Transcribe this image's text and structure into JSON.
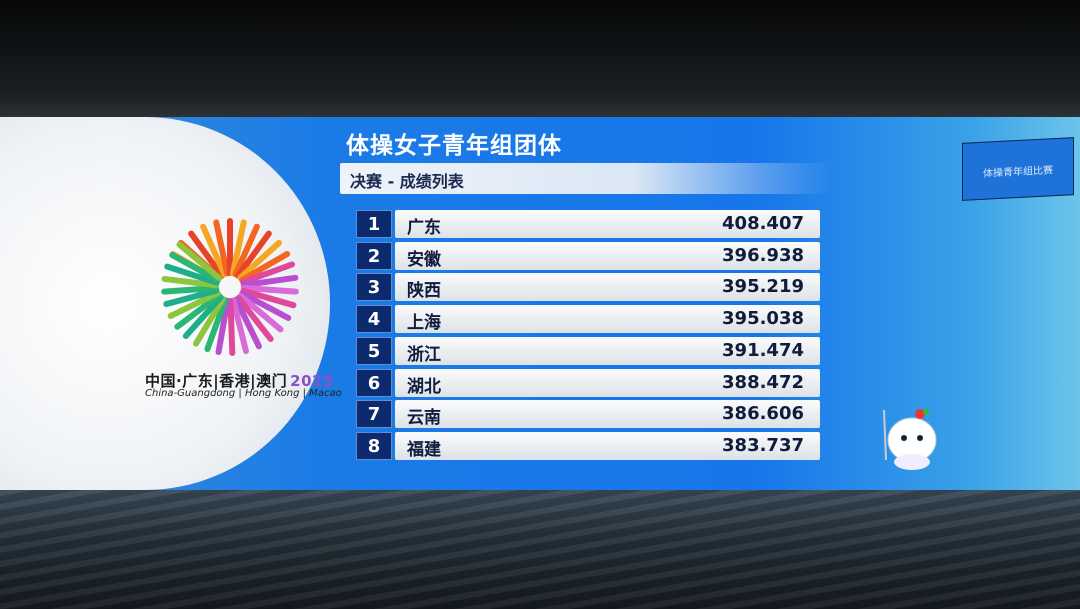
{
  "event_title": "体操女子青年组团体",
  "subtitle": "决赛 - 成绩列表",
  "logo": {
    "text_cn": "中国·广东|香港|澳门",
    "year": "2025",
    "text_en": "China-Guangdong | Hong Kong | Macao"
  },
  "background_screen_text": "体操青年组比赛",
  "results": [
    {
      "rank": "1",
      "team": "广东",
      "score": "408.407"
    },
    {
      "rank": "2",
      "team": "安徽",
      "score": "396.938"
    },
    {
      "rank": "3",
      "team": "陕西",
      "score": "395.219"
    },
    {
      "rank": "4",
      "team": "上海",
      "score": "395.038"
    },
    {
      "rank": "5",
      "team": "浙江",
      "score": "391.474"
    },
    {
      "rank": "6",
      "team": "湖北",
      "score": "388.472"
    },
    {
      "rank": "7",
      "team": "云南",
      "score": "386.606"
    },
    {
      "rank": "8",
      "team": "福建",
      "score": "383.737"
    }
  ],
  "colors": {
    "rank_box": "#0d2a6e",
    "band": "#1776ea"
  }
}
